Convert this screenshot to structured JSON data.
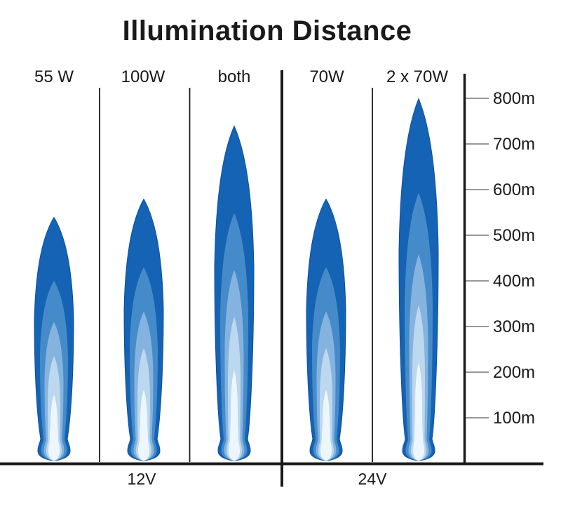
{
  "chart_data": {
    "type": "bar",
    "title": "Illumination Distance",
    "unit": "m",
    "yticks": [
      "800m",
      "700m",
      "600m",
      "500m",
      "400m",
      "300m",
      "200m",
      "100m"
    ],
    "ytick_values": [
      800,
      700,
      600,
      500,
      400,
      300,
      200,
      100
    ],
    "ylim": [
      0,
      850
    ],
    "grid": "off",
    "legend_position": "none",
    "axis_side": "right",
    "groups": [
      {
        "label": "12V"
      },
      {
        "label": "24V"
      }
    ],
    "series": [
      {
        "label": "55 W",
        "group": "12V",
        "distance_m": 540
      },
      {
        "label": "100W",
        "group": "12V",
        "distance_m": 580
      },
      {
        "label": "both",
        "group": "12V",
        "distance_m": 740
      },
      {
        "label": "70W",
        "group": "24V",
        "distance_m": 580
      },
      {
        "label": "2 x 70W",
        "group": "24V",
        "distance_m": 800
      }
    ],
    "colors": {
      "beam_layers": [
        "#1563b4",
        "#468bc9",
        "#85b3df",
        "#bcd8ef",
        "#eef6fd"
      ],
      "beam_outline": "#0d4fa0",
      "line": "#1a1a1a",
      "tick": "#777777",
      "text": "#1a1a1a",
      "background": "#ffffff"
    }
  }
}
